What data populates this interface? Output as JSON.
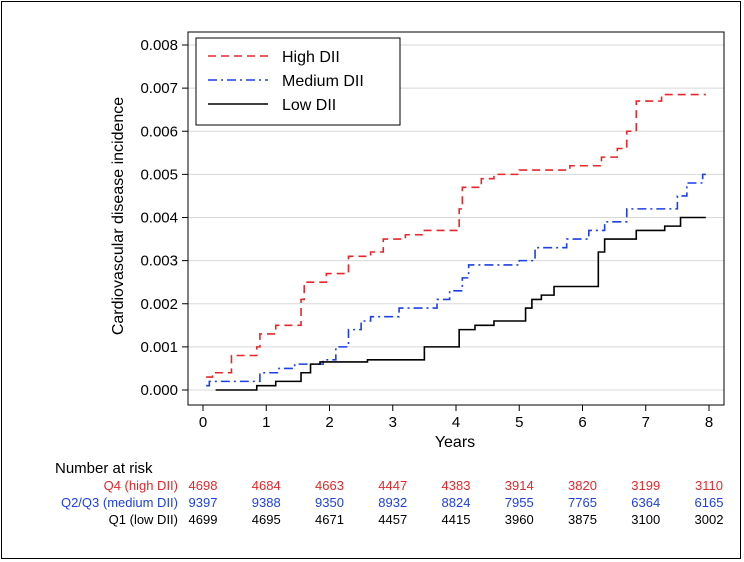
{
  "chart_data": {
    "type": "line",
    "xlabel": "Years",
    "ylabel": "Cardiovascular disease incidence",
    "xlim": [
      0,
      8
    ],
    "ylim": [
      0,
      0.008
    ],
    "x_ticks": [
      "0",
      "1",
      "2",
      "3",
      "4",
      "5",
      "6",
      "7",
      "8"
    ],
    "y_ticks": [
      "0.000",
      "0.001",
      "0.002",
      "0.003",
      "0.004",
      "0.005",
      "0.006",
      "0.007",
      "0.008"
    ],
    "grid": "horizontal",
    "legend_position": "top-left",
    "series": [
      {
        "name": "High DII",
        "color": "#e8262a",
        "dash": "dashed",
        "points": [
          [
            0.05,
            0.0003
          ],
          [
            0.15,
            0.0004
          ],
          [
            0.45,
            0.0008
          ],
          [
            0.85,
            0.001
          ],
          [
            0.9,
            0.0013
          ],
          [
            1.15,
            0.0015
          ],
          [
            1.55,
            0.0021
          ],
          [
            1.6,
            0.0025
          ],
          [
            1.95,
            0.0027
          ],
          [
            2.3,
            0.0031
          ],
          [
            2.65,
            0.0032
          ],
          [
            2.85,
            0.0035
          ],
          [
            3.2,
            0.0036
          ],
          [
            3.5,
            0.0037
          ],
          [
            4.05,
            0.0042
          ],
          [
            4.1,
            0.0047
          ],
          [
            4.4,
            0.0049
          ],
          [
            4.6,
            0.005
          ],
          [
            5.0,
            0.0051
          ],
          [
            5.8,
            0.0052
          ],
          [
            6.3,
            0.0054
          ],
          [
            6.55,
            0.0056
          ],
          [
            6.7,
            0.006
          ],
          [
            6.85,
            0.0067
          ],
          [
            7.25,
            0.00685
          ],
          [
            7.95,
            0.00685
          ]
        ]
      },
      {
        "name": "Medium DII",
        "color": "#1d3fe8",
        "dash": "dashdot",
        "points": [
          [
            0.05,
            0.0001
          ],
          [
            0.1,
            0.0002
          ],
          [
            0.9,
            0.0004
          ],
          [
            1.2,
            0.0005
          ],
          [
            1.45,
            0.0006
          ],
          [
            1.9,
            0.0007
          ],
          [
            2.1,
            0.001
          ],
          [
            2.3,
            0.0014
          ],
          [
            2.5,
            0.0016
          ],
          [
            2.65,
            0.0017
          ],
          [
            3.1,
            0.0019
          ],
          [
            3.7,
            0.0021
          ],
          [
            3.9,
            0.0023
          ],
          [
            4.1,
            0.0026
          ],
          [
            4.2,
            0.0029
          ],
          [
            5.0,
            0.003
          ],
          [
            5.25,
            0.0033
          ],
          [
            5.75,
            0.0035
          ],
          [
            6.1,
            0.0037
          ],
          [
            6.35,
            0.0039
          ],
          [
            6.7,
            0.0042
          ],
          [
            7.5,
            0.0045
          ],
          [
            7.65,
            0.0048
          ],
          [
            7.9,
            0.005
          ],
          [
            7.95,
            0.005
          ]
        ]
      },
      {
        "name": "Low DII",
        "color": "#000000",
        "dash": "solid",
        "points": [
          [
            0.2,
            0.0
          ],
          [
            0.85,
            0.0001
          ],
          [
            1.15,
            0.0002
          ],
          [
            1.55,
            0.0004
          ],
          [
            1.7,
            0.0006
          ],
          [
            1.85,
            0.00065
          ],
          [
            2.6,
            0.0007
          ],
          [
            3.5,
            0.001
          ],
          [
            4.05,
            0.0014
          ],
          [
            4.3,
            0.0015
          ],
          [
            4.6,
            0.0016
          ],
          [
            5.1,
            0.0019
          ],
          [
            5.2,
            0.0021
          ],
          [
            5.35,
            0.0022
          ],
          [
            5.55,
            0.0024
          ],
          [
            6.25,
            0.0032
          ],
          [
            6.35,
            0.0035
          ],
          [
            6.85,
            0.0037
          ],
          [
            7.3,
            0.0038
          ],
          [
            7.55,
            0.004
          ],
          [
            7.95,
            0.004
          ]
        ]
      }
    ],
    "risk_table": {
      "title": "Number at risk",
      "rows": [
        {
          "label": "Q4 (high DII)",
          "color": "#e8262a",
          "values": [
            "4698",
            "4684",
            "4663",
            "4447",
            "4383",
            "3914",
            "3820",
            "3199",
            "3110"
          ]
        },
        {
          "label": "Q2/Q3 (medium DII)",
          "color": "#1d3fe8",
          "values": [
            "9397",
            "9388",
            "9350",
            "8932",
            "8824",
            "7955",
            "7765",
            "6364",
            "6165"
          ]
        },
        {
          "label": "Q1 (low DII)",
          "color": "#000000",
          "values": [
            "4699",
            "4695",
            "4671",
            "4457",
            "4415",
            "3960",
            "3875",
            "3100",
            "3002"
          ]
        }
      ]
    }
  }
}
